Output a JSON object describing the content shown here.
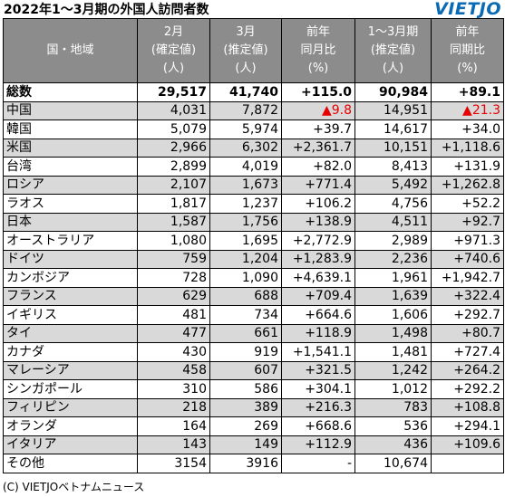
{
  "title": "2022年1～3月期の外国人訪問者数",
  "logo": "VIETJO",
  "header": {
    "country": "国・地域",
    "feb": [
      "2月",
      "(確定値)",
      "(人)"
    ],
    "mar": [
      "3月",
      "(推定値)",
      "(人)"
    ],
    "yoy_month": [
      "前年",
      "同月比",
      "(%)"
    ],
    "q1": [
      "1～3月期",
      "(推定値)",
      "(人)"
    ],
    "yoy_period": [
      "前年",
      "同期比",
      "(%)"
    ]
  },
  "rows": [
    {
      "name": "総数",
      "feb": "29,517",
      "mar": "41,740",
      "yoy_month": "+115.0",
      "q1": "90,984",
      "yoy_period": "+89.1",
      "style": "total"
    },
    {
      "name": "中国",
      "feb": "4,031",
      "mar": "7,872",
      "yoy_month": "▲9.8",
      "q1": "14,951",
      "yoy_period": "▲21.3",
      "style": "alt",
      "neg": true
    },
    {
      "name": "韓国",
      "feb": "5,079",
      "mar": "5,974",
      "yoy_month": "+39.7",
      "q1": "14,617",
      "yoy_period": "+34.0",
      "style": "plain"
    },
    {
      "name": "米国",
      "feb": "2,966",
      "mar": "6,302",
      "yoy_month": "+2,361.7",
      "q1": "10,151",
      "yoy_period": "+1,118.6",
      "style": "alt"
    },
    {
      "name": "台湾",
      "feb": "2,899",
      "mar": "4,019",
      "yoy_month": "+82.0",
      "q1": "8,413",
      "yoy_period": "+131.9",
      "style": "plain"
    },
    {
      "name": "ロシア",
      "feb": "2,107",
      "mar": "1,673",
      "yoy_month": "+771.4",
      "q1": "5,492",
      "yoy_period": "+1,262.8",
      "style": "alt"
    },
    {
      "name": "ラオス",
      "feb": "1,817",
      "mar": "1,237",
      "yoy_month": "+106.2",
      "q1": "4,756",
      "yoy_period": "+52.2",
      "style": "plain"
    },
    {
      "name": "日本",
      "feb": "1,587",
      "mar": "1,756",
      "yoy_month": "+138.9",
      "q1": "4,511",
      "yoy_period": "+92.7",
      "style": "alt"
    },
    {
      "name": "オーストラリア",
      "feb": "1,080",
      "mar": "1,695",
      "yoy_month": "+2,772.9",
      "q1": "2,989",
      "yoy_period": "+971.3",
      "style": "plain"
    },
    {
      "name": "ドイツ",
      "feb": "759",
      "mar": "1,204",
      "yoy_month": "+1,283.9",
      "q1": "2,236",
      "yoy_period": "+740.6",
      "style": "alt"
    },
    {
      "name": "カンボジア",
      "feb": "728",
      "mar": "1,090",
      "yoy_month": "+4,639.1",
      "q1": "1,961",
      "yoy_period": "+1,942.7",
      "style": "plain"
    },
    {
      "name": "フランス",
      "feb": "629",
      "mar": "688",
      "yoy_month": "+709.4",
      "q1": "1,639",
      "yoy_period": "+322.4",
      "style": "alt"
    },
    {
      "name": "イギリス",
      "feb": "481",
      "mar": "734",
      "yoy_month": "+664.6",
      "q1": "1,606",
      "yoy_period": "+292.7",
      "style": "plain"
    },
    {
      "name": "タイ",
      "feb": "477",
      "mar": "661",
      "yoy_month": "+118.9",
      "q1": "1,498",
      "yoy_period": "+80.7",
      "style": "alt"
    },
    {
      "name": "カナダ",
      "feb": "430",
      "mar": "919",
      "yoy_month": "+1,541.1",
      "q1": "1,481",
      "yoy_period": "+727.4",
      "style": "plain"
    },
    {
      "name": "マレーシア",
      "feb": "458",
      "mar": "607",
      "yoy_month": "+321.5",
      "q1": "1,242",
      "yoy_period": "+264.2",
      "style": "alt"
    },
    {
      "name": "シンガポール",
      "feb": "310",
      "mar": "586",
      "yoy_month": "+304.1",
      "q1": "1,012",
      "yoy_period": "+292.2",
      "style": "plain"
    },
    {
      "name": "フィリピン",
      "feb": "218",
      "mar": "389",
      "yoy_month": "+216.3",
      "q1": "783",
      "yoy_period": "+108.8",
      "style": "alt"
    },
    {
      "name": "オランダ",
      "feb": "164",
      "mar": "269",
      "yoy_month": "+668.6",
      "q1": "536",
      "yoy_period": "+294.1",
      "style": "plain"
    },
    {
      "name": "イタリア",
      "feb": "143",
      "mar": "149",
      "yoy_month": "+112.9",
      "q1": "436",
      "yoy_period": "+109.6",
      "style": "alt"
    },
    {
      "name": "その他",
      "feb": "3154",
      "mar": "3916",
      "yoy_month": "-",
      "q1": "10,674",
      "yoy_period": "",
      "style": "plain"
    }
  ],
  "footer": "(C) VIETJOベトナムニュース"
}
